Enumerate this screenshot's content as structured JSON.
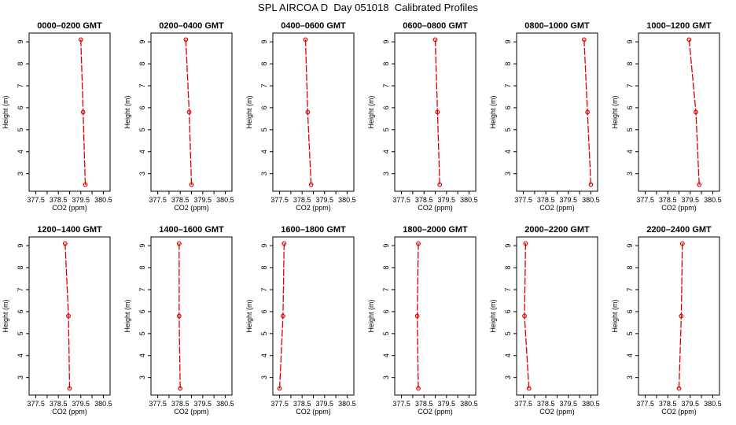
{
  "title": "SPL AIRCOA D  Day 051018  Calibrated Profiles",
  "colors": {
    "line": "#dd0000",
    "axis": "#000000",
    "background": "#ffffff"
  },
  "chart_data": [
    {
      "type": "line",
      "title": "0000–0200 GMT",
      "xlabel": "CO2 (ppm)",
      "ylabel": "Height (m)",
      "xlim": [
        377.2,
        380.8
      ],
      "ylim": [
        2.2,
        9.4
      ],
      "xticks": [
        "377.5",
        "378.5",
        "379.5",
        "380.5"
      ],
      "xtick_values": [
        377.5,
        378.0,
        378.5,
        379.0,
        379.5,
        380.0,
        380.5
      ],
      "yticks": [
        3,
        4,
        5,
        6,
        7,
        8,
        9
      ],
      "series": [
        {
          "x": [
            379.7,
            379.6,
            379.5
          ],
          "y": [
            2.5,
            5.8,
            9.1
          ]
        }
      ]
    },
    {
      "type": "line",
      "title": "0200–0400 GMT",
      "xlabel": "CO2 (ppm)",
      "ylabel": "Height (m)",
      "xlim": [
        377.2,
        380.8
      ],
      "ylim": [
        2.2,
        9.4
      ],
      "xticks": [
        "377.5",
        "378.5",
        "379.5",
        "380.5"
      ],
      "xtick_values": [
        377.5,
        378.0,
        378.5,
        379.0,
        379.5,
        380.0,
        380.5
      ],
      "yticks": [
        3,
        4,
        5,
        6,
        7,
        8,
        9
      ],
      "series": [
        {
          "x": [
            379.0,
            378.9,
            378.75
          ],
          "y": [
            2.5,
            5.8,
            9.1
          ]
        }
      ]
    },
    {
      "type": "line",
      "title": "0400–0600 GMT",
      "xlabel": "CO2 (ppm)",
      "ylabel": "Height (m)",
      "xlim": [
        377.2,
        380.8
      ],
      "ylim": [
        2.2,
        9.4
      ],
      "xticks": [
        "377.5",
        "378.5",
        "379.5",
        "380.5"
      ],
      "xtick_values": [
        377.5,
        378.0,
        378.5,
        379.0,
        379.5,
        380.0,
        380.5
      ],
      "yticks": [
        3,
        4,
        5,
        6,
        7,
        8,
        9
      ],
      "series": [
        {
          "x": [
            378.9,
            378.75,
            378.65
          ],
          "y": [
            2.5,
            5.8,
            9.1
          ]
        }
      ]
    },
    {
      "type": "line",
      "title": "0600–0800 GMT",
      "xlabel": "CO2 (ppm)",
      "ylabel": "Height (m)",
      "xlim": [
        377.2,
        380.8
      ],
      "ylim": [
        2.2,
        9.4
      ],
      "xticks": [
        "377.5",
        "378.5",
        "379.5",
        "380.5"
      ],
      "xtick_values": [
        377.5,
        378.0,
        378.5,
        379.0,
        379.5,
        380.0,
        380.5
      ],
      "yticks": [
        3,
        4,
        5,
        6,
        7,
        8,
        9
      ],
      "series": [
        {
          "x": [
            379.2,
            379.1,
            379.0
          ],
          "y": [
            2.5,
            5.8,
            9.1
          ]
        }
      ]
    },
    {
      "type": "line",
      "title": "0800–1000 GMT",
      "xlabel": "CO2 (ppm)",
      "ylabel": "Height (m)",
      "xlim": [
        377.2,
        380.8
      ],
      "ylim": [
        2.2,
        9.4
      ],
      "xticks": [
        "377.5",
        "378.5",
        "379.5",
        "380.5"
      ],
      "xtick_values": [
        377.5,
        378.0,
        378.5,
        379.0,
        379.5,
        380.0,
        380.5
      ],
      "yticks": [
        3,
        4,
        5,
        6,
        7,
        8,
        9
      ],
      "series": [
        {
          "x": [
            380.5,
            380.35,
            380.2
          ],
          "y": [
            2.5,
            5.8,
            9.1
          ]
        }
      ]
    },
    {
      "type": "line",
      "title": "1000–1200 GMT",
      "xlabel": "CO2 (ppm)",
      "ylabel": "Height (m)",
      "xlim": [
        377.2,
        380.8
      ],
      "ylim": [
        2.2,
        9.4
      ],
      "xticks": [
        "377.5",
        "378.5",
        "379.5",
        "380.5"
      ],
      "xtick_values": [
        377.5,
        378.0,
        378.5,
        379.0,
        379.5,
        380.0,
        380.5
      ],
      "yticks": [
        3,
        4,
        5,
        6,
        7,
        8,
        9
      ],
      "series": [
        {
          "x": [
            379.9,
            379.75,
            379.45
          ],
          "y": [
            2.5,
            5.8,
            9.1
          ]
        }
      ]
    },
    {
      "type": "line",
      "title": "1200–1400 GMT",
      "xlabel": "CO2 (ppm)",
      "ylabel": "Height (m)",
      "xlim": [
        377.2,
        380.8
      ],
      "ylim": [
        2.2,
        9.4
      ],
      "xticks": [
        "377.5",
        "378.5",
        "379.5",
        "380.5"
      ],
      "xtick_values": [
        377.5,
        378.0,
        378.5,
        379.0,
        379.5,
        380.0,
        380.5
      ],
      "yticks": [
        3,
        4,
        5,
        6,
        7,
        8,
        9
      ],
      "series": [
        {
          "x": [
            379.0,
            378.95,
            378.8
          ],
          "y": [
            2.5,
            5.8,
            9.1
          ]
        }
      ]
    },
    {
      "type": "line",
      "title": "1400–1600 GMT",
      "xlabel": "CO2 (ppm)",
      "ylabel": "Height (m)",
      "xlim": [
        377.2,
        380.8
      ],
      "ylim": [
        2.2,
        9.4
      ],
      "xticks": [
        "377.5",
        "378.5",
        "379.5",
        "380.5"
      ],
      "xtick_values": [
        377.5,
        378.0,
        378.5,
        379.0,
        379.5,
        380.0,
        380.5
      ],
      "yticks": [
        3,
        4,
        5,
        6,
        7,
        8,
        9
      ],
      "series": [
        {
          "x": [
            378.5,
            378.45,
            378.45
          ],
          "y": [
            2.5,
            5.8,
            9.1
          ]
        }
      ]
    },
    {
      "type": "line",
      "title": "1600–1800 GMT",
      "xlabel": "CO2 (ppm)",
      "ylabel": "Height (m)",
      "xlim": [
        377.2,
        380.8
      ],
      "ylim": [
        2.2,
        9.4
      ],
      "xticks": [
        "377.5",
        "378.5",
        "379.5",
        "380.5"
      ],
      "xtick_values": [
        377.5,
        378.0,
        378.5,
        379.0,
        379.5,
        380.0,
        380.5
      ],
      "yticks": [
        3,
        4,
        5,
        6,
        7,
        8,
        9
      ],
      "series": [
        {
          "x": [
            377.5,
            377.65,
            377.7
          ],
          "y": [
            2.5,
            5.8,
            9.1
          ]
        }
      ]
    },
    {
      "type": "line",
      "title": "1800–2000 GMT",
      "xlabel": "CO2 (ppm)",
      "ylabel": "Height (m)",
      "xlim": [
        377.2,
        380.8
      ],
      "ylim": [
        2.2,
        9.4
      ],
      "xticks": [
        "377.5",
        "378.5",
        "379.5",
        "380.5"
      ],
      "xtick_values": [
        377.5,
        378.0,
        378.5,
        379.0,
        379.5,
        380.0,
        380.5
      ],
      "yticks": [
        3,
        4,
        5,
        6,
        7,
        8,
        9
      ],
      "series": [
        {
          "x": [
            378.25,
            378.2,
            378.25
          ],
          "y": [
            2.5,
            5.8,
            9.1
          ]
        }
      ]
    },
    {
      "type": "line",
      "title": "2000–2200 GMT",
      "xlabel": "CO2 (ppm)",
      "ylabel": "Height (m)",
      "xlim": [
        377.2,
        380.8
      ],
      "ylim": [
        2.2,
        9.4
      ],
      "xticks": [
        "377.5",
        "378.5",
        "379.5",
        "380.5"
      ],
      "xtick_values": [
        377.5,
        378.0,
        378.5,
        379.0,
        379.5,
        380.0,
        380.5
      ],
      "yticks": [
        3,
        4,
        5,
        6,
        7,
        8,
        9
      ],
      "series": [
        {
          "x": [
            377.75,
            377.55,
            377.6
          ],
          "y": [
            2.5,
            5.8,
            9.1
          ]
        }
      ]
    },
    {
      "type": "line",
      "title": "2200–2400 GMT",
      "xlabel": "CO2 (ppm)",
      "ylabel": "Height (m)",
      "xlim": [
        377.2,
        380.8
      ],
      "ylim": [
        2.2,
        9.4
      ],
      "xticks": [
        "377.5",
        "378.5",
        "379.5",
        "380.5"
      ],
      "xtick_values": [
        377.5,
        378.0,
        378.5,
        379.0,
        379.5,
        380.0,
        380.5
      ],
      "yticks": [
        3,
        4,
        5,
        6,
        7,
        8,
        9
      ],
      "series": [
        {
          "x": [
            379.0,
            379.1,
            379.15
          ],
          "y": [
            2.5,
            5.8,
            9.1
          ]
        }
      ]
    }
  ]
}
